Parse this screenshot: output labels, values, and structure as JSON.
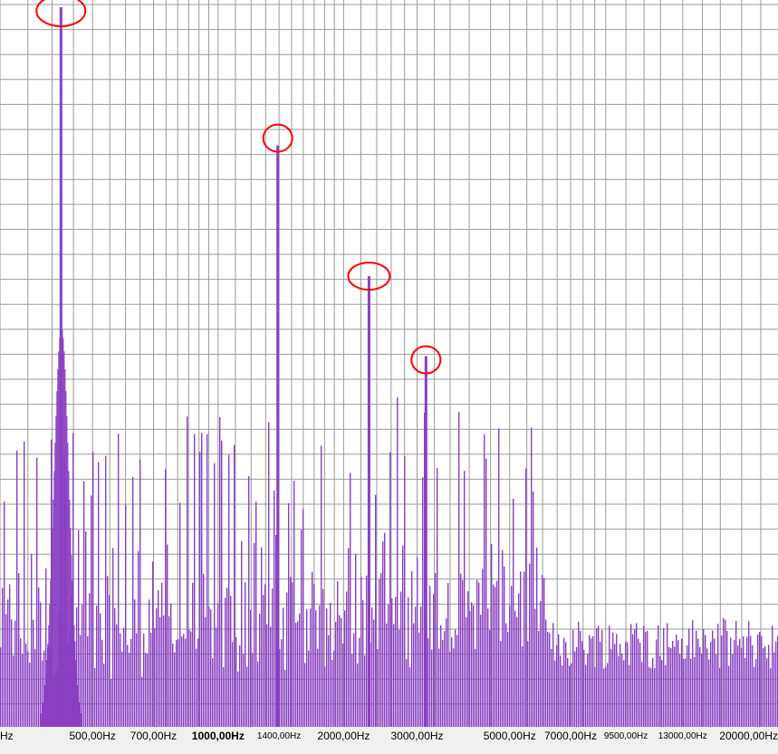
{
  "chart_data": {
    "type": "bar",
    "title": "",
    "xlabel": "",
    "ylabel": "",
    "x_scale": "log",
    "xlim": [
      300,
      22000
    ],
    "ylim": [
      0,
      1
    ],
    "grid": true,
    "colors": {
      "bars": "#8a3fc2",
      "grid": "#9a9a9a",
      "background": "#ffffff",
      "annotation": "#ff0000",
      "axis_bar": "#f0f0f0"
    },
    "x_tick_labels": [
      {
        "text": "Hz",
        "freq": 300
      },
      {
        "text": "500,00Hz",
        "freq": 500
      },
      {
        "text": "700,00Hz",
        "freq": 700
      },
      {
        "text": "1000,00Hz",
        "freq": 1000,
        "bold": true
      },
      {
        "text": "1400,00Hz",
        "freq": 1400,
        "small": true
      },
      {
        "text": "2000,00Hz",
        "freq": 2000
      },
      {
        "text": "3000,00Hz",
        "freq": 3000
      },
      {
        "text": "5000,00Hz",
        "freq": 5000
      },
      {
        "text": "7000,00Hz",
        "freq": 7000
      },
      {
        "text": "9500,00Hz",
        "freq": 9500,
        "small": true
      },
      {
        "text": "13000,00Hz",
        "freq": 13000,
        "small": true
      },
      {
        "text": "20000,00Hz",
        "freq": 20000
      }
    ],
    "peaks": [
      {
        "freq": 420,
        "value": 0.99
      },
      {
        "freq": 1390,
        "value": 0.8
      },
      {
        "freq": 2300,
        "value": 0.62
      },
      {
        "freq": 3150,
        "value": 0.51
      }
    ],
    "annotations": [
      {
        "type": "circle",
        "freq": 420,
        "value": 0.985
      },
      {
        "type": "circle",
        "freq": 1390,
        "value": 0.81
      },
      {
        "type": "circle",
        "freq": 2300,
        "value": 0.62
      },
      {
        "type": "circle",
        "freq": 3150,
        "value": 0.505
      }
    ]
  }
}
